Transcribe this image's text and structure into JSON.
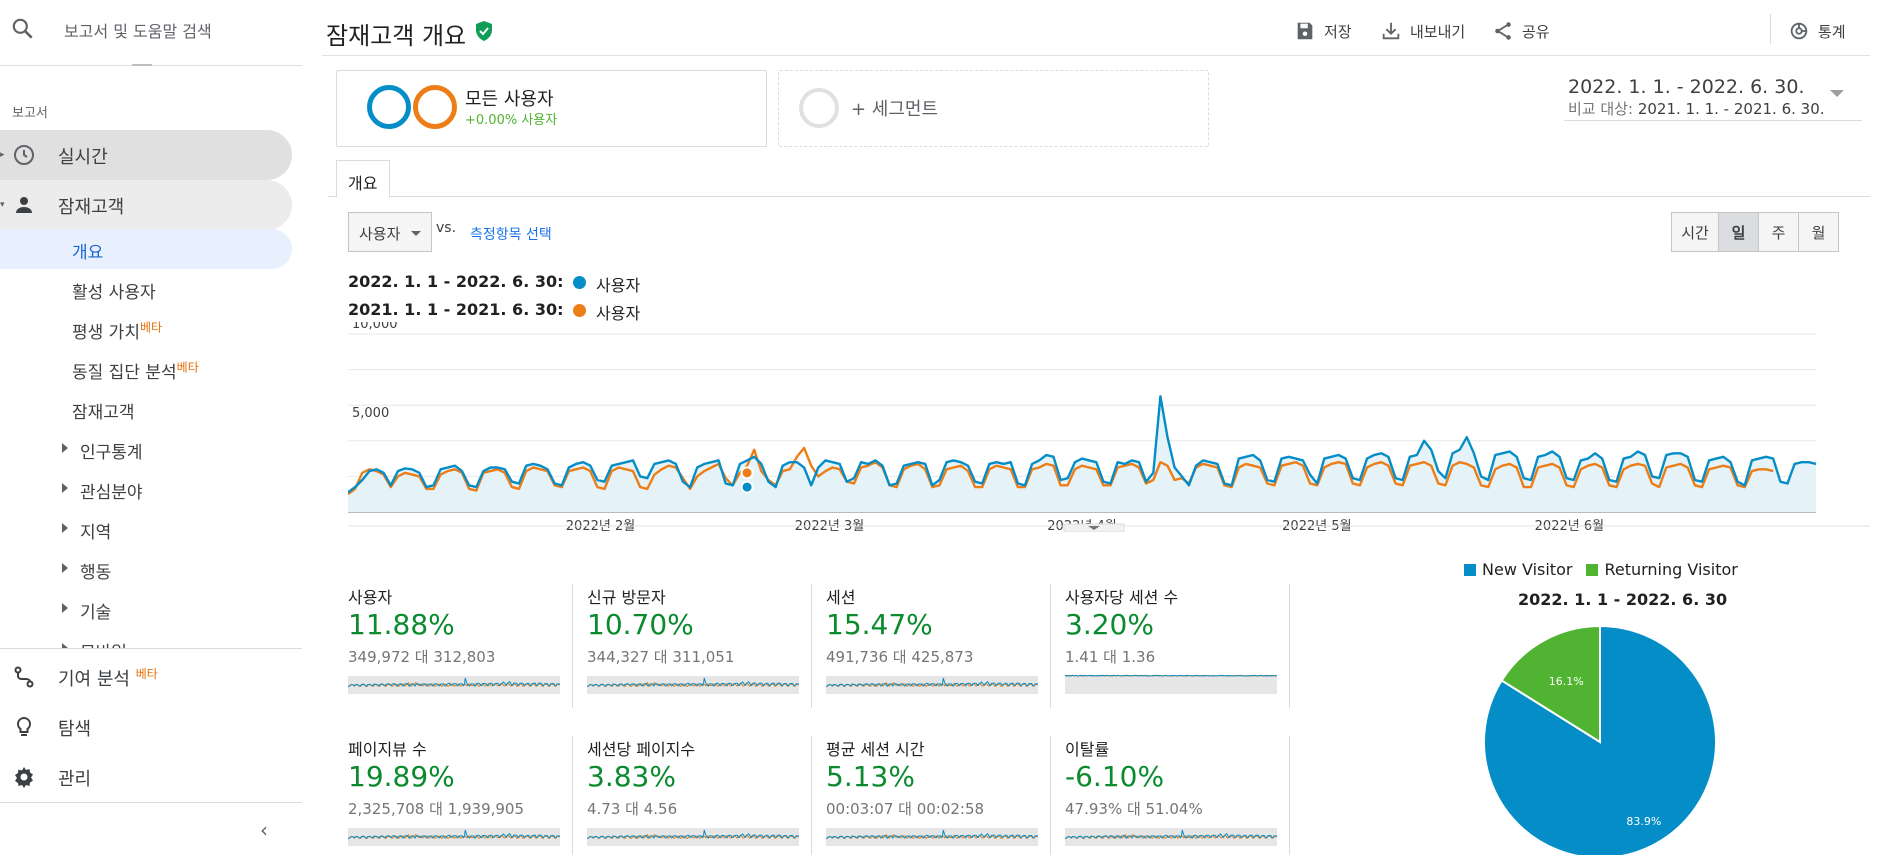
{
  "search": {
    "placeholder": "보고서 및 도움말 검색"
  },
  "sidebar": {
    "section_label": "보고서",
    "realtime": "실시간",
    "audience": "잠재고객",
    "sub_items": [
      "개요",
      "활성 사용자",
      "평생 가치",
      "동질 집단 분석",
      "잠재고객"
    ],
    "beta": "베타",
    "expandable": [
      "인구통계",
      "관심분야",
      "지역",
      "행동",
      "기술",
      "모바일"
    ],
    "attribution": "기여 분석",
    "discover": "탐색",
    "admin": "관리"
  },
  "header": {
    "title": "잠재고객 개요",
    "save": "저장",
    "export": "내보내기",
    "share": "공유",
    "insights": "통계"
  },
  "segments": {
    "all_users": "모든 사용자",
    "all_users_sub": "+0.00% 사용자",
    "add_segment": "+ 세그먼트"
  },
  "date_range": {
    "main": "2022. 1. 1. - 2022. 6. 30.",
    "compare_label": "비교 대상:",
    "compare": "2021. 1. 1. - 2021. 6. 30."
  },
  "tab": {
    "overview": "개요"
  },
  "metric_selector": {
    "selected": "사용자",
    "vs": "vs.",
    "link": "측정항목 선택"
  },
  "granularity": {
    "options": [
      "시간",
      "일",
      "주",
      "월"
    ],
    "active": "일"
  },
  "legend": [
    {
      "range": "2022. 1. 1 - 2022. 6. 30:",
      "series": "사용자",
      "color": "#058dc7"
    },
    {
      "range": "2021. 1. 1 - 2021. 6. 30:",
      "series": "사용자",
      "color": "#ed7e17"
    }
  ],
  "chart_data": {
    "type": "line",
    "ylim": [
      0,
      10000
    ],
    "y_ticks": [
      "10,000",
      "5,000"
    ],
    "x_tick_labels": [
      "2022년 2월",
      "2022년 3월",
      "2022년 4월",
      "2022년 5월",
      "2022년 6월"
    ],
    "series": [
      {
        "name": "사용자",
        "period": "2022. 1. 1 - 2022. 6. 30",
        "color": "#058dc7",
        "values": [
          1100,
          1400,
          1800,
          2300,
          2400,
          2200,
          1500,
          2300,
          2450,
          2400,
          2200,
          1400,
          1500,
          2400,
          2500,
          2600,
          2300,
          1500,
          1400,
          2300,
          2500,
          2500,
          2400,
          1700,
          1600,
          2600,
          2700,
          2600,
          2400,
          1600,
          1500,
          2500,
          2700,
          2800,
          2600,
          1800,
          1700,
          2600,
          2700,
          2800,
          2900,
          2000,
          1900,
          2700,
          2800,
          2900,
          2700,
          1700,
          1400,
          2500,
          2700,
          2800,
          2900,
          1600,
          1500,
          2700,
          2900,
          3100,
          2700,
          1700,
          1400,
          2600,
          2800,
          2800,
          2500,
          1500,
          2500,
          2900,
          2800,
          2700,
          1700,
          1900,
          2800,
          2700,
          2900,
          2600,
          1500,
          1600,
          2600,
          2700,
          2800,
          2700,
          1500,
          1800,
          2800,
          2900,
          2800,
          2600,
          1700,
          1600,
          2700,
          2800,
          2700,
          2800,
          1600,
          1500,
          2700,
          2900,
          3200,
          3100,
          1800,
          1900,
          2800,
          3000,
          2900,
          2800,
          1700,
          1600,
          2800,
          2700,
          2900,
          2800,
          1700,
          2200,
          6500,
          4200,
          2500,
          2000,
          1500,
          2600,
          2900,
          2800,
          2700,
          1600,
          1500,
          3000,
          3100,
          3200,
          2900,
          1800,
          1700,
          3000,
          3100,
          3000,
          2900,
          2100,
          1600,
          3000,
          3100,
          3200,
          3000,
          1900,
          1800,
          3000,
          3200,
          3300,
          3100,
          1900,
          1800,
          3100,
          3200,
          4000,
          3500,
          2300,
          1900,
          3300,
          3500,
          4200,
          3300,
          2000,
          1800,
          3200,
          3300,
          3400,
          3100,
          1900,
          1800,
          3100,
          3200,
          3400,
          3100,
          1900,
          1800,
          2900,
          3000,
          3300,
          3000,
          1800,
          1700,
          3000,
          3100,
          3400,
          3200,
          2000,
          1900,
          3200,
          3300,
          3300,
          3100,
          1800,
          1700,
          2900,
          3000,
          3100,
          2800,
          1700,
          1500,
          2900,
          3000,
          3100,
          3000,
          1700,
          1600,
          2700,
          2800,
          2800,
          2700
        ]
      },
      {
        "name": "사용자",
        "period": "2021. 1. 1 - 2021. 6. 30",
        "color": "#ed7e17",
        "values": [
          1000,
          1300,
          2200,
          2400,
          2300,
          2100,
          1400,
          2000,
          2200,
          2100,
          2000,
          1300,
          1300,
          2100,
          2300,
          2400,
          2200,
          1300,
          1200,
          2200,
          2300,
          2400,
          2200,
          1400,
          1300,
          2300,
          2500,
          2400,
          2300,
          1500,
          1400,
          2300,
          2400,
          2500,
          2300,
          1400,
          1300,
          2300,
          2500,
          2400,
          2300,
          1400,
          1300,
          2100,
          2400,
          2600,
          2500,
          1900,
          1300,
          2000,
          2300,
          2500,
          2700,
          1900,
          1500,
          2200,
          2600,
          3500,
          2300,
          1800,
          1500,
          2300,
          2400,
          3100,
          3600,
          2600,
          2000,
          2300,
          2500,
          2400,
          1700,
          1600,
          2500,
          2600,
          2800,
          2500,
          1500,
          1400,
          2400,
          2600,
          2700,
          2400,
          1400,
          1500,
          2400,
          2500,
          2600,
          2300,
          1400,
          1400,
          2400,
          2600,
          2500,
          2400,
          1400,
          1400,
          2400,
          2500,
          2700,
          2600,
          1500,
          1500,
          2400,
          2600,
          2500,
          2400,
          1500,
          1500,
          2500,
          2600,
          2700,
          2500,
          1600,
          1800,
          2800,
          2600,
          1800,
          1900,
          1600,
          2500,
          2700,
          2600,
          2500,
          1500,
          1400,
          2500,
          2700,
          2600,
          2500,
          1600,
          1500,
          2600,
          2700,
          2800,
          2600,
          1600,
          1500,
          2500,
          2700,
          2800,
          2700,
          1600,
          1500,
          2500,
          2700,
          2800,
          2600,
          1600,
          1500,
          2600,
          2700,
          2800,
          2600,
          1600,
          1500,
          2600,
          2800,
          2700,
          2500,
          1500,
          1400,
          2400,
          2600,
          2700,
          2500,
          1400,
          1400,
          2500,
          2600,
          2700,
          2500,
          1500,
          1400,
          2400,
          2600,
          2700,
          2500,
          1500,
          1400,
          2400,
          2600,
          2700,
          2600,
          1600,
          1400,
          2500,
          2600,
          2700,
          2500,
          1500,
          1400,
          2400,
          2500,
          2600,
          2500,
          1500,
          1400,
          2300,
          2400,
          2400,
          2300
        ]
      }
    ],
    "markers": [
      {
        "series_index": 0,
        "value": 1400
      },
      {
        "series_index": 1,
        "value": 2200
      }
    ]
  },
  "metrics": [
    {
      "label": "사용자",
      "pct": "11.88%",
      "vals": "349,972 대 312,803"
    },
    {
      "label": "신규 방문자",
      "pct": "10.70%",
      "vals": "344,327 대 311,051"
    },
    {
      "label": "세션",
      "pct": "15.47%",
      "vals": "491,736 대 425,873"
    },
    {
      "label": "사용자당 세션 수",
      "pct": "3.20%",
      "vals": "1.41 대 1.36"
    },
    {
      "label": "페이지뷰 수",
      "pct": "19.89%",
      "vals": "2,325,708 대 1,939,905"
    },
    {
      "label": "세션당 페이지수",
      "pct": "3.83%",
      "vals": "4.73 대 4.56"
    },
    {
      "label": "평균 세션 시간",
      "pct": "5.13%",
      "vals": "00:03:07 대 00:02:58"
    },
    {
      "label": "이탈률",
      "pct": "-6.10%",
      "vals": "47.93% 대 51.04%"
    }
  ],
  "pie": {
    "title": "2022. 1. 1 - 2022. 6. 30",
    "legend": [
      "New Visitor",
      "Returning Visitor"
    ],
    "slices": [
      {
        "name": "New Visitor",
        "value": 83.9,
        "label": "83.9%",
        "color": "#058dc7"
      },
      {
        "name": "Returning Visitor",
        "value": 16.1,
        "label": "16.1%",
        "color": "#50b432"
      }
    ]
  },
  "colors": {
    "accent_blue": "#058dc7",
    "accent_orange": "#ed7e17",
    "positive_green": "#0b8a2e",
    "active_bg": "#e8f0fe",
    "active_text": "#1967d2"
  }
}
